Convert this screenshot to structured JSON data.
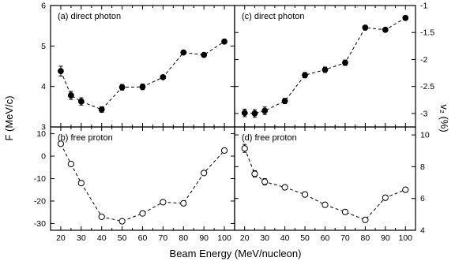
{
  "chart_data": [
    {
      "id": "a",
      "type": "scatter",
      "label": "(a) direct photon",
      "marker": "filled-circle",
      "line": "dashed",
      "x": [
        20,
        25,
        30,
        40,
        50,
        60,
        70,
        80,
        90,
        100
      ],
      "y": [
        4.38,
        3.78,
        3.63,
        3.43,
        3.98,
        3.99,
        4.23,
        4.84,
        4.78,
        5.11
      ],
      "yerr": [
        0.12,
        0.1,
        0.09,
        0.07,
        0.07,
        0.07,
        0.05,
        0.05,
        0.05,
        0.05
      ],
      "xlim": [
        15,
        105
      ],
      "ylim": [
        3,
        6
      ],
      "yticks": [
        3,
        4,
        5,
        6
      ],
      "yaxis": "left"
    },
    {
      "id": "b",
      "type": "scatter",
      "label": "(b) free proton",
      "marker": "open-circle",
      "line": "dashed",
      "x": [
        20,
        25,
        30,
        40,
        50,
        60,
        70,
        80,
        90,
        100
      ],
      "y": [
        5.5,
        -3.5,
        -12,
        -27,
        -29,
        -25.5,
        -20.5,
        -21,
        -7.5,
        2.5
      ],
      "yerr": [
        0.8,
        0.8,
        0.8,
        0.8,
        0.8,
        0.8,
        0.8,
        0.8,
        0.8,
        0.8
      ],
      "xlim": [
        15,
        105
      ],
      "ylim": [
        -33,
        13
      ],
      "yticks": [
        -30,
        -20,
        -10,
        0,
        10
      ],
      "yaxis": "left"
    },
    {
      "id": "c",
      "type": "scatter",
      "label": "(c) direct photon",
      "marker": "filled-circle",
      "line": "dashed",
      "x": [
        20,
        25,
        30,
        40,
        50,
        60,
        70,
        80,
        90,
        100
      ],
      "y": [
        -2.99,
        -3.0,
        -2.95,
        -2.77,
        -2.29,
        -2.19,
        -2.06,
        -1.41,
        -1.45,
        -1.23
      ],
      "yerr": [
        0.07,
        0.07,
        0.07,
        0.05,
        0.05,
        0.05,
        0.05,
        0.04,
        0.04,
        0.04
      ],
      "xlim": [
        15,
        105
      ],
      "ylim": [
        -3.25,
        -1.0
      ],
      "yticks": [
        -3,
        -2.5,
        -2,
        -1.5,
        -1
      ],
      "yaxis": "right"
    },
    {
      "id": "d",
      "type": "scatter",
      "label": "(d) free proton",
      "marker": "open-circle",
      "line": "dashed",
      "x": [
        20,
        25,
        30,
        40,
        50,
        60,
        70,
        80,
        90,
        100
      ],
      "y": [
        9.15,
        7.55,
        7.05,
        6.7,
        6.25,
        5.6,
        5.15,
        4.65,
        6.05,
        6.55
      ],
      "yerr": [
        0.25,
        0.2,
        0.2,
        0.15,
        0.15,
        0.15,
        0.15,
        0.15,
        0.15,
        0.15
      ],
      "xlim": [
        15,
        105
      ],
      "ylim": [
        4,
        10.5
      ],
      "yticks": [
        4,
        6,
        8,
        10
      ],
      "yaxis": "right"
    }
  ],
  "axes": {
    "xlabel": "Beam Energy (MeV/nucleon)",
    "ylabel_left": "F (MeV/c)",
    "ylabel_right": "v₂ (%)",
    "xticks": [
      20,
      30,
      40,
      50,
      60,
      70,
      80,
      90,
      100
    ]
  }
}
